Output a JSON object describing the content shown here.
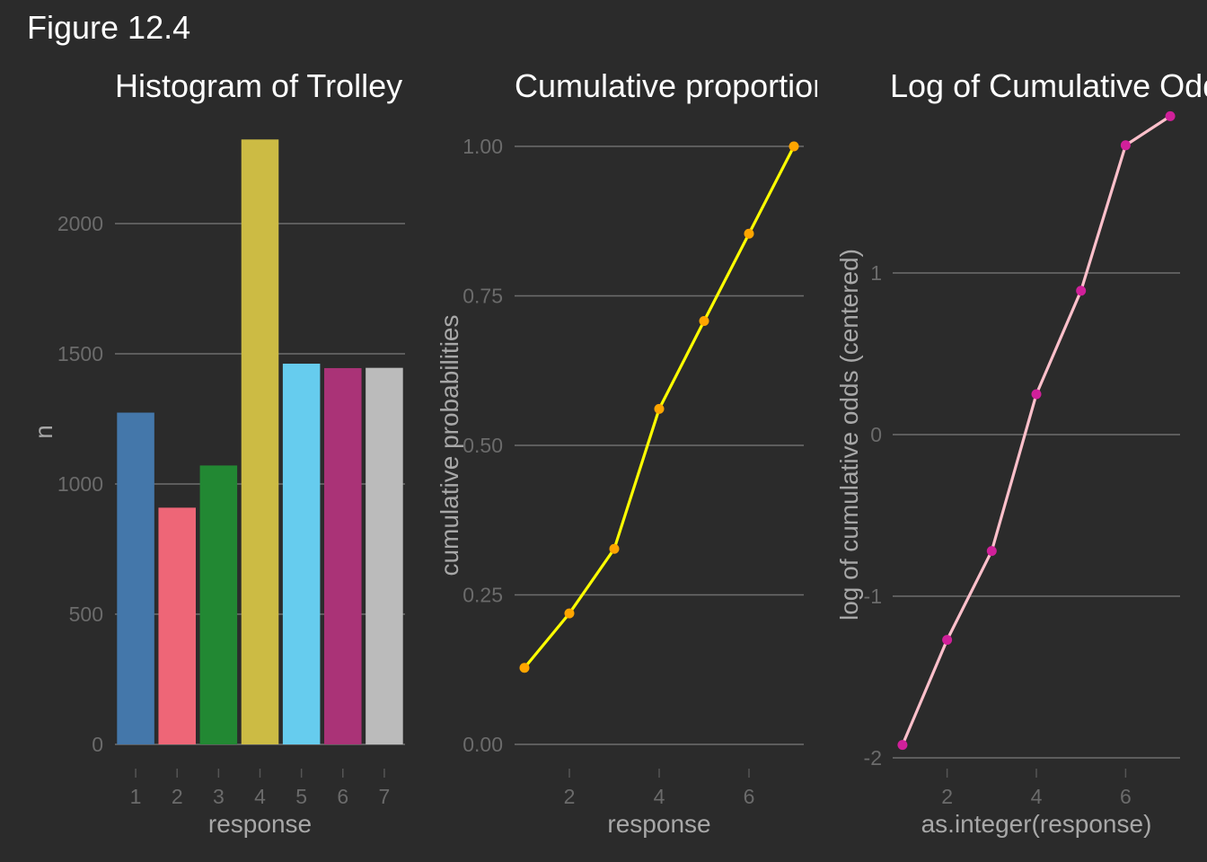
{
  "figure_title": "Figure 12.4",
  "colors": {
    "background": "#2b2b2b",
    "grid": "#6e6e6e",
    "bars": [
      "#4477aa",
      "#ee6677",
      "#228833",
      "#ccbb44",
      "#66ccee",
      "#aa3377",
      "#bbbbbb"
    ],
    "cum_line": "#ffff00",
    "cum_points": "#ffa500",
    "logodds_line": "#ffc0cb",
    "logodds_points": "#d0209a"
  },
  "chart_data": [
    {
      "type": "bar",
      "title": "Histogram of Trolley",
      "xlabel": "response",
      "ylabel": "n",
      "categories": [
        "1",
        "2",
        "3",
        "4",
        "5",
        "6",
        "7"
      ],
      "values": [
        1274,
        909,
        1071,
        2323,
        1462,
        1445,
        1446
      ],
      "ylim": [
        0,
        2400
      ],
      "yticks": [
        0,
        500,
        1000,
        1500,
        2000
      ],
      "ytick_labels": [
        "0",
        "500",
        "1000",
        "1500",
        "2000"
      ],
      "grid": "horizontal",
      "legend": "none"
    },
    {
      "type": "line",
      "title": "Cumulative proportions",
      "xlabel": "response",
      "ylabel": "cumulative probabilities",
      "x": [
        1,
        2,
        3,
        4,
        5,
        6,
        7
      ],
      "y": [
        0.128,
        0.219,
        0.327,
        0.561,
        0.708,
        0.854,
        1.0
      ],
      "xlim": [
        0.78,
        7.22
      ],
      "xticks": [
        2,
        4,
        6
      ],
      "xtick_labels": [
        "2",
        "4",
        "6"
      ],
      "ylim": [
        0,
        1
      ],
      "yticks": [
        0,
        0.25,
        0.5,
        0.75,
        1.0
      ],
      "ytick_labels": [
        "0.00",
        "0.25",
        "0.50",
        "0.75",
        "1.00"
      ],
      "grid": "horizontal",
      "legend": "none"
    },
    {
      "type": "line",
      "title": "Log of Cumulative Odds",
      "xlabel": "as.integer(response)",
      "ylabel": "log of cumulative odds (centered)",
      "x": [
        1,
        2,
        3,
        4,
        5,
        6,
        7
      ],
      "y": [
        -1.92,
        -1.27,
        -0.72,
        0.25,
        0.89,
        1.79,
        1.97
      ],
      "xlim": [
        0.78,
        7.22
      ],
      "xticks": [
        2,
        4,
        6
      ],
      "xtick_labels": [
        "2",
        "4",
        "6"
      ],
      "ylim": [
        -2,
        2
      ],
      "yticks": [
        -2,
        -1,
        0,
        1
      ],
      "ytick_labels": [
        "-2",
        "-1",
        "0",
        "1"
      ],
      "grid": "horizontal",
      "legend": "none"
    }
  ]
}
